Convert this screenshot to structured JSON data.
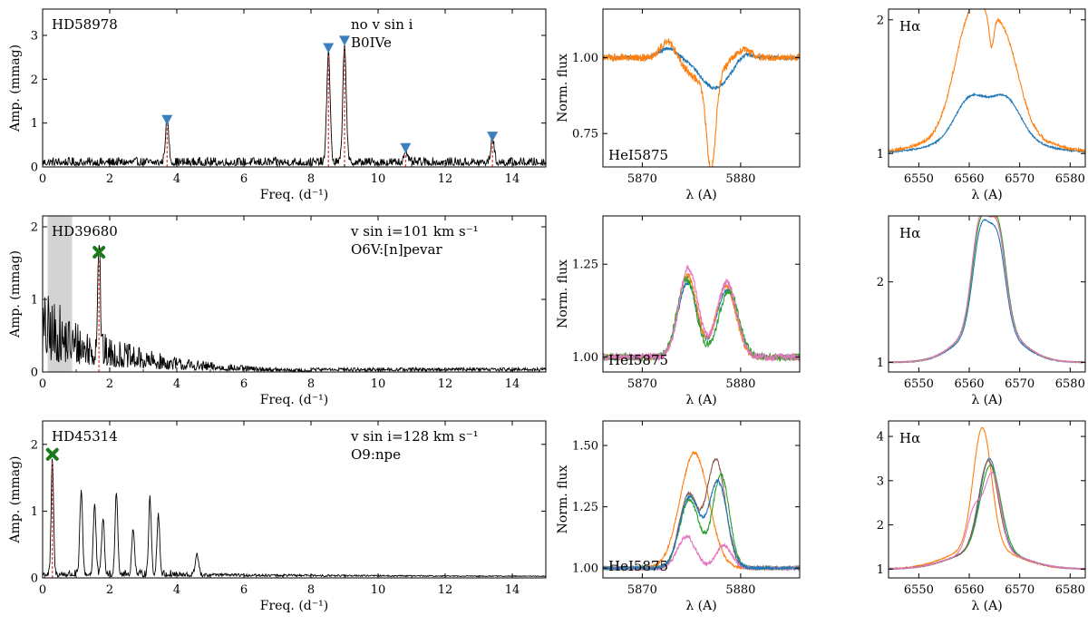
{
  "chart_data": [
    {
      "type": "line",
      "id": "p1",
      "xlabel": "Freq. (d⁻¹)",
      "ylabel": "Amp. (mmag)",
      "xlim": [
        0,
        15
      ],
      "ylim": [
        0,
        3.6
      ],
      "xticks": [
        0,
        2,
        4,
        6,
        8,
        10,
        12,
        14
      ],
      "yticks": [
        0,
        1,
        2,
        3
      ],
      "series_color": "#000000",
      "annotations": [
        "HD58978",
        "no v sin i",
        "B0IVe"
      ],
      "baseline_noise": 0.22,
      "noise_decay": 0.0,
      "peaks": [
        {
          "x": 3.71,
          "y": 0.95,
          "width": 0.05
        },
        {
          "x": 8.52,
          "y": 2.55,
          "width": 0.05
        },
        {
          "x": 9.0,
          "y": 2.72,
          "width": 0.05
        },
        {
          "x": 10.82,
          "y": 0.3,
          "width": 0.05
        },
        {
          "x": 13.41,
          "y": 0.55,
          "width": 0.05
        }
      ],
      "markers": [
        {
          "x": 3.71,
          "y": 1.08,
          "symbol": "triangle-down",
          "color": "#3b7fbf"
        },
        {
          "x": 8.52,
          "y": 2.72,
          "symbol": "triangle-down",
          "color": "#3b7fbf"
        },
        {
          "x": 9.0,
          "y": 2.89,
          "symbol": "triangle-down",
          "color": "#3b7fbf"
        },
        {
          "x": 10.82,
          "y": 0.44,
          "symbol": "triangle-down",
          "color": "#3b7fbf"
        },
        {
          "x": 13.41,
          "y": 0.7,
          "symbol": "triangle-down",
          "color": "#3b7fbf"
        }
      ],
      "vlines": [
        3.71,
        8.52,
        9.0,
        10.82,
        13.41
      ],
      "vline_color": "#e03a3a",
      "shade": null
    },
    {
      "type": "line",
      "id": "p2",
      "xlabel": "Freq. (d⁻¹)",
      "ylabel": "Amp. (mmag)",
      "xlim": [
        0,
        15
      ],
      "ylim": [
        0,
        2.15
      ],
      "xticks": [
        0,
        2,
        4,
        6,
        8,
        10,
        12,
        14
      ],
      "yticks": [
        0,
        1,
        2
      ],
      "series_color": "#000000",
      "annotations": [
        "HD39680",
        "v sin i=101 km s⁻¹",
        "O6V:[n]pevar"
      ],
      "baseline_noise": 1.15,
      "noise_decay": 0.42,
      "peaks": [
        {
          "x": 1.68,
          "y": 1.55,
          "width": 0.04
        }
      ],
      "markers": [
        {
          "x": 1.68,
          "y": 1.65,
          "symbol": "cross",
          "color": "#1a7a1a"
        }
      ],
      "vlines": [
        1.68
      ],
      "vline_color": "#e03a3a",
      "shade": [
        0.15,
        0.88
      ]
    },
    {
      "type": "line",
      "id": "p3",
      "xlabel": "Freq. (d⁻¹)",
      "ylabel": "Amp. (mmag)",
      "xlim": [
        0,
        15
      ],
      "ylim": [
        0,
        2.35
      ],
      "xticks": [
        0,
        2,
        4,
        6,
        8,
        10,
        12,
        14
      ],
      "yticks": [
        0,
        1,
        2
      ],
      "series_color": "#000000",
      "annotations": [
        "HD45314",
        "v sin i=128 km s⁻¹",
        "O9:npe"
      ],
      "baseline_noise": 0.1,
      "noise_decay": 0.0,
      "peaks": [
        {
          "x": 0.29,
          "y": 1.73,
          "width": 0.035
        },
        {
          "x": 1.15,
          "y": 1.25,
          "width": 0.04
        },
        {
          "x": 1.55,
          "y": 1.05,
          "width": 0.04
        },
        {
          "x": 1.8,
          "y": 0.85,
          "width": 0.04
        },
        {
          "x": 2.2,
          "y": 1.25,
          "width": 0.04
        },
        {
          "x": 2.7,
          "y": 0.7,
          "width": 0.04
        },
        {
          "x": 3.2,
          "y": 1.12,
          "width": 0.04
        },
        {
          "x": 3.45,
          "y": 0.9,
          "width": 0.04
        },
        {
          "x": 4.6,
          "y": 0.32,
          "width": 0.05
        }
      ],
      "markers": [
        {
          "x": 0.29,
          "y": 1.85,
          "symbol": "cross",
          "color": "#1a7a1a"
        }
      ],
      "vlines": [
        0.29
      ],
      "vline_color": "#e03a3a",
      "shade": null
    },
    {
      "type": "line",
      "id": "p4",
      "xlabel": "λ (A)",
      "ylabel": "Norm. flux",
      "xlim": [
        5866,
        5886
      ],
      "ylim": [
        0.64,
        1.16
      ],
      "xticks": [
        5870,
        5880
      ],
      "yticks": [
        0.75,
        1.0
      ],
      "ytick_labels": [
        "0.75",
        "1.00"
      ],
      "annotations": [
        "HeI5875"
      ],
      "series": [
        {
          "color": "#1f77b4",
          "noise": 0.006,
          "components": [
            {
              "c": 5872.6,
              "a": 0.03,
              "s": 0.9
            },
            {
              "c": 5877.4,
              "a": -0.1,
              "s": 1.5
            },
            {
              "c": 5880.3,
              "a": 0.02,
              "s": 0.8
            }
          ]
        },
        {
          "color": "#ff7f0e",
          "noise": 0.012,
          "components": [
            {
              "c": 5872.6,
              "a": 0.06,
              "s": 0.7
            },
            {
              "c": 5877.0,
              "a": -0.3,
              "s": 0.45
            },
            {
              "c": 5876.3,
              "a": -0.08,
              "s": 1.6
            },
            {
              "c": 5880.2,
              "a": 0.03,
              "s": 0.8
            }
          ]
        }
      ]
    },
    {
      "type": "line",
      "id": "p5",
      "xlabel": "λ (A)",
      "ylabel": "",
      "xlim": [
        6544,
        6583
      ],
      "ylim": [
        0.9,
        2.08
      ],
      "xticks": [
        6550,
        6560,
        6570,
        6580
      ],
      "yticks": [
        1,
        2
      ],
      "ytick_labels": [
        "1",
        "2"
      ],
      "annotations": [
        "Hα"
      ],
      "series": [
        {
          "color": "#1f77b4",
          "noise": 0.006,
          "components": [
            {
              "c": 6560.2,
              "a": 0.3,
              "s": 3.0
            },
            {
              "c": 6567.2,
              "a": 0.3,
              "s": 3.0
            },
            {
              "c": 6563.7,
              "a": 0.12,
              "s": 9.0
            }
          ]
        },
        {
          "color": "#ff7f0e",
          "noise": 0.012,
          "components": [
            {
              "c": 6560.5,
              "a": 0.85,
              "s": 3.3
            },
            {
              "c": 6567.0,
              "a": 0.62,
              "s": 3.0
            },
            {
              "c": 6564.4,
              "a": -0.25,
              "s": 0.5
            },
            {
              "c": 6563.5,
              "a": 0.2,
              "s": 9.0
            }
          ]
        }
      ]
    },
    {
      "type": "line",
      "id": "p6",
      "xlabel": "λ (A)",
      "ylabel": "Norm. flux",
      "xlim": [
        5866,
        5886
      ],
      "ylim": [
        0.96,
        1.38
      ],
      "xticks": [
        5870,
        5880
      ],
      "yticks": [
        1.0,
        1.25
      ],
      "ytick_labels": [
        "1.00",
        "1.25"
      ],
      "annotations": [
        "HeI5875"
      ],
      "series": [
        {
          "color": "#1f77b4",
          "noise": 0.006,
          "components": [
            {
              "c": 5874.6,
              "a": 0.2,
              "s": 0.95
            },
            {
              "c": 5878.6,
              "a": 0.18,
              "s": 1.05
            }
          ]
        },
        {
          "color": "#ff7f0e",
          "noise": 0.008,
          "components": [
            {
              "c": 5874.6,
              "a": 0.22,
              "s": 0.95
            },
            {
              "c": 5878.5,
              "a": 0.19,
              "s": 1.0
            }
          ]
        },
        {
          "color": "#2ca02c",
          "noise": 0.01,
          "components": [
            {
              "c": 5874.5,
              "a": 0.21,
              "s": 0.95
            },
            {
              "c": 5878.8,
              "a": 0.18,
              "s": 1.0
            }
          ]
        },
        {
          "color": "#e377c2",
          "noise": 0.01,
          "components": [
            {
              "c": 5874.7,
              "a": 0.24,
              "s": 0.95
            },
            {
              "c": 5878.6,
              "a": 0.2,
              "s": 1.0
            }
          ]
        }
      ]
    },
    {
      "type": "line",
      "id": "p7",
      "xlabel": "λ (A)",
      "ylabel": "",
      "xlim": [
        6544,
        6583
      ],
      "ylim": [
        0.88,
        2.82
      ],
      "xticks": [
        6550,
        6560,
        6570,
        6580
      ],
      "yticks": [
        1,
        2
      ],
      "ytick_labels": [
        "1",
        "2"
      ],
      "annotations": [
        "Hα"
      ],
      "series": [
        {
          "color": "#1f77b4",
          "noise": 0.006,
          "components": [
            {
              "c": 6562.3,
              "a": 1.15,
              "s": 1.6
            },
            {
              "c": 6565.6,
              "a": 1.05,
              "s": 1.6
            },
            {
              "c": 6563.9,
              "a": 0.45,
              "s": 5.5
            }
          ]
        },
        {
          "color": "#ff7f0e",
          "noise": 0.006,
          "components": [
            {
              "c": 6562.2,
              "a": 1.2,
              "s": 1.6
            },
            {
              "c": 6565.6,
              "a": 1.15,
              "s": 1.6
            },
            {
              "c": 6563.9,
              "a": 0.5,
              "s": 5.5
            }
          ]
        },
        {
          "color": "#2ca02c",
          "noise": 0.006,
          "components": [
            {
              "c": 6562.2,
              "a": 1.2,
              "s": 1.6
            },
            {
              "c": 6565.7,
              "a": 1.2,
              "s": 1.6
            },
            {
              "c": 6563.9,
              "a": 0.5,
              "s": 5.5
            }
          ]
        },
        {
          "color": "#e377c2",
          "noise": 0.006,
          "components": [
            {
              "c": 6562.1,
              "a": 1.25,
              "s": 1.6
            },
            {
              "c": 6565.6,
              "a": 1.15,
              "s": 1.6
            },
            {
              "c": 6563.9,
              "a": 0.5,
              "s": 5.5
            }
          ]
        }
      ]
    },
    {
      "type": "line",
      "id": "p8",
      "xlabel": "λ (A)",
      "ylabel": "Norm. flux",
      "xlim": [
        5866,
        5886
      ],
      "ylim": [
        0.96,
        1.6
      ],
      "xticks": [
        5870,
        5880
      ],
      "yticks": [
        1.0,
        1.25,
        1.5
      ],
      "ytick_labels": [
        "1.00",
        "1.25",
        "1.50"
      ],
      "annotations": [
        "HeI5875"
      ],
      "series": [
        {
          "color": "#ff7f0e",
          "noise": 0.006,
          "components": [
            {
              "c": 5875.3,
              "a": 0.47,
              "s": 1.45
            }
          ]
        },
        {
          "color": "#8c564b",
          "noise": 0.006,
          "components": [
            {
              "c": 5874.7,
              "a": 0.3,
              "s": 0.95
            },
            {
              "c": 5877.5,
              "a": 0.44,
              "s": 0.95
            }
          ]
        },
        {
          "color": "#2ca02c",
          "noise": 0.008,
          "components": [
            {
              "c": 5874.8,
              "a": 0.28,
              "s": 1.0
            },
            {
              "c": 5878.0,
              "a": 0.38,
              "s": 0.85
            }
          ]
        },
        {
          "color": "#e377c2",
          "noise": 0.008,
          "components": [
            {
              "c": 5874.5,
              "a": 0.13,
              "s": 0.9
            },
            {
              "c": 5878.3,
              "a": 0.09,
              "s": 0.8
            }
          ]
        },
        {
          "color": "#1f77b4",
          "noise": 0.006,
          "components": [
            {
              "c": 5874.8,
              "a": 0.29,
              "s": 1.0
            },
            {
              "c": 5877.7,
              "a": 0.35,
              "s": 0.95
            }
          ]
        }
      ]
    },
    {
      "type": "line",
      "id": "p9",
      "xlabel": "λ (A)",
      "ylabel": "",
      "xlim": [
        6544,
        6583
      ],
      "ylim": [
        0.8,
        4.35
      ],
      "xticks": [
        6550,
        6560,
        6570,
        6580
      ],
      "yticks": [
        1,
        2,
        3,
        4
      ],
      "ytick_labels": [
        "1",
        "2",
        "3",
        "4"
      ],
      "annotations": [
        "Hα"
      ],
      "series": [
        {
          "color": "#ff7f0e",
          "noise": 0.01,
          "components": [
            {
              "c": 6562.6,
              "a": 2.7,
              "s": 1.8
            },
            {
              "c": 6562.6,
              "a": 0.5,
              "s": 6.5
            }
          ]
        },
        {
          "color": "#1f77b4",
          "noise": 0.01,
          "components": [
            {
              "c": 6564.0,
              "a": 2.05,
              "s": 1.9
            },
            {
              "c": 6563.5,
              "a": 0.45,
              "s": 6.5
            }
          ]
        },
        {
          "color": "#2ca02c",
          "noise": 0.01,
          "components": [
            {
              "c": 6564.2,
              "a": 1.9,
              "s": 2.0
            },
            {
              "c": 6563.5,
              "a": 0.45,
              "s": 6.5
            }
          ]
        },
        {
          "color": "#8c564b",
          "noise": 0.01,
          "components": [
            {
              "c": 6563.8,
              "a": 2.0,
              "s": 1.9
            },
            {
              "c": 6563.5,
              "a": 0.45,
              "s": 6.5
            }
          ]
        },
        {
          "color": "#e377c2",
          "noise": 0.01,
          "components": [
            {
              "c": 6561.0,
              "a": 0.9,
              "s": 1.4
            },
            {
              "c": 6564.6,
              "a": 1.7,
              "s": 1.6
            },
            {
              "c": 6563.5,
              "a": 0.45,
              "s": 6.5
            }
          ]
        }
      ]
    }
  ]
}
